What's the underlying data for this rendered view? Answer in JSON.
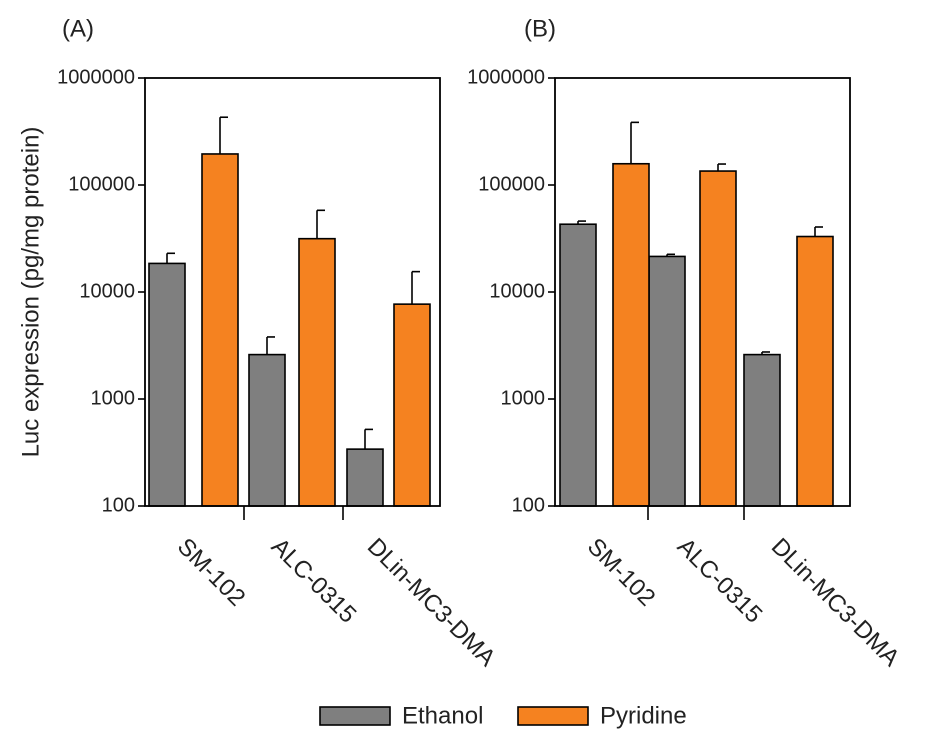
{
  "chart_data": [
    {
      "panel_label": "(A)",
      "type": "bar",
      "scale": "log",
      "ylim": [
        100,
        1000000
      ],
      "yticks": [
        "1000000",
        "100000",
        "10000",
        "1000",
        "100"
      ],
      "ylabel": "Luc expression (pg/mg protein)",
      "categories": [
        "SM-102",
        "ALC-0315",
        "DLin-MC3-DMA"
      ],
      "series": [
        {
          "name": "Ethanol",
          "values": [
            18500,
            2600,
            340
          ],
          "errors": [
            23000,
            3800,
            520
          ]
        },
        {
          "name": "Pyridine",
          "values": [
            195000,
            31500,
            7700
          ],
          "errors": [
            430000,
            58000,
            15500
          ]
        }
      ]
    },
    {
      "panel_label": "(B)",
      "type": "bar",
      "scale": "log",
      "ylim": [
        100,
        1000000
      ],
      "yticks": [
        "1000000",
        "100000",
        "10000",
        "1000",
        "100"
      ],
      "ylabel": "",
      "categories": [
        "SM-102",
        "ALC-0315",
        "DLin-MC3-DMA"
      ],
      "series": [
        {
          "name": "Ethanol",
          "values": [
            43000,
            21500,
            2600
          ],
          "errors": [
            46000,
            22500,
            2750
          ]
        },
        {
          "name": "Pyridine",
          "values": [
            158000,
            135000,
            33000
          ],
          "errors": [
            385000,
            157000,
            40500
          ]
        }
      ]
    }
  ],
  "legend": {
    "items": [
      {
        "label": "Ethanol",
        "color": "#7f7f7f"
      },
      {
        "label": "Pyridine",
        "color": "#f58220"
      }
    ]
  },
  "colors": {
    "ethanol": "#7f7f7f",
    "pyridine": "#f58220",
    "axis": "#000000"
  }
}
